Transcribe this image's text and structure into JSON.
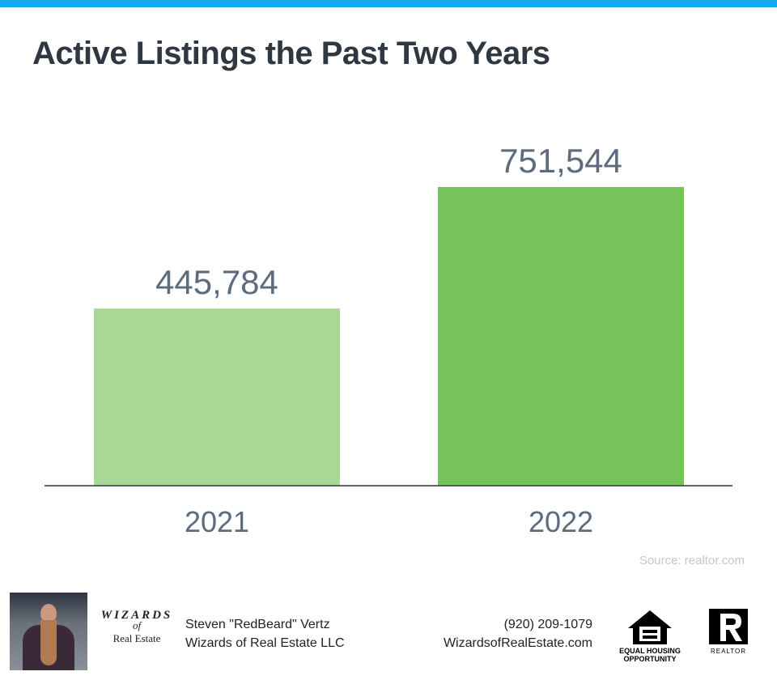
{
  "header": {
    "title": "Active Listings the Past Two Years",
    "accent_color": "#15aaee"
  },
  "chart_data": {
    "type": "bar",
    "title": "Active Listings the Past Two Years",
    "categories": [
      "2021",
      "2022"
    ],
    "values": [
      445784,
      751544
    ],
    "value_labels": [
      "445,784",
      "751,544"
    ],
    "colors": [
      "#a8d994",
      "#76c35a"
    ],
    "xlabel": "",
    "ylabel": "",
    "ylim": [
      0,
      751544
    ],
    "grid": false,
    "source": "Source: realtor.com"
  },
  "footer": {
    "agent_name": "Steven \"RedBeard\" Vertz",
    "company": "Wizards of Real Estate LLC",
    "phone": "(920) 209-1079",
    "website": "WizardsofRealEstate.com",
    "logo": {
      "line1": "WIZARDS",
      "line2": "of",
      "line3": "Real Estate"
    },
    "eho_text": "EQUAL HOUSING OPPORTUNITY",
    "realtor_text": "REALTOR"
  }
}
